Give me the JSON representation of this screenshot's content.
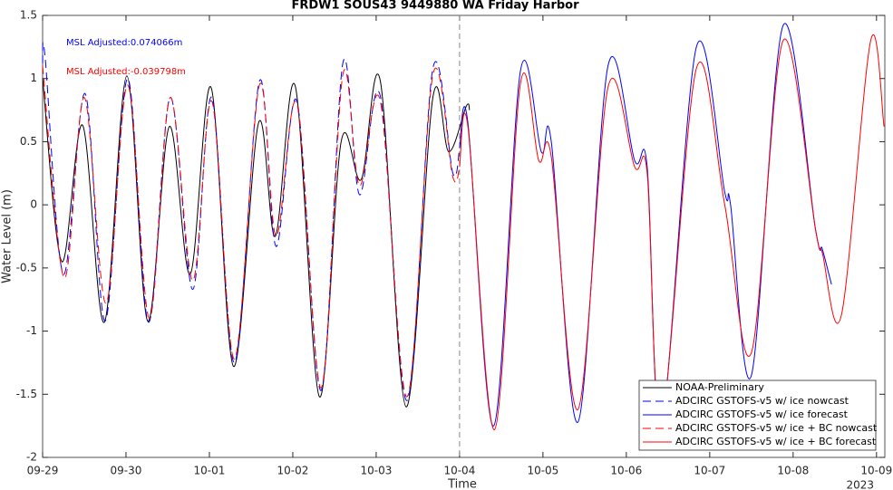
{
  "chart_data": {
    "type": "line",
    "title": "FRDW1 SOUS43 9449880 WA Friday Harbor",
    "x_label": "Time",
    "y_label": "Water Level (m)",
    "xlim": [
      0,
      10.1
    ],
    "ylim": [
      -2,
      1.5
    ],
    "xticks": [
      {
        "value": 0,
        "label": "09-29"
      },
      {
        "value": 1,
        "label": "09-30"
      },
      {
        "value": 2,
        "label": "10-01"
      },
      {
        "value": 3,
        "label": "10-02"
      },
      {
        "value": 4,
        "label": "10-03"
      },
      {
        "value": 5,
        "label": "10-04"
      },
      {
        "value": 6,
        "label": "10-05"
      },
      {
        "value": 7,
        "label": "10-06"
      },
      {
        "value": 8,
        "label": "10-07"
      },
      {
        "value": 9,
        "label": "10-08"
      },
      {
        "value": 10,
        "label": "10-09"
      }
    ],
    "x_year": "2023",
    "yticks": [
      -2,
      -1.5,
      -1,
      -0.5,
      0,
      0.5,
      1,
      1.5
    ],
    "divider_x": 5,
    "annotations": [
      {
        "text": "MSL Adjusted:0.074066m",
        "color": "#0000ff"
      },
      {
        "text": "MSL Adjusted:-0.039798m",
        "color": "#ff0000"
      }
    ],
    "legend": "lower right",
    "series": [
      {
        "name": "NOAA-Preliminary",
        "color": "#000000",
        "dash": false,
        "x": [
          0,
          0.23,
          0.48,
          0.74,
          1.01,
          1.26,
          1.52,
          1.77,
          2.02,
          2.29,
          2.59,
          2.79,
          3.03,
          3.32,
          3.58,
          3.82,
          4.05,
          4.36,
          4.68,
          4.87,
          5.08,
          5.12
        ],
        "values": [
          1.0,
          -0.45,
          0.63,
          -0.93,
          1.02,
          -0.92,
          0.62,
          -0.55,
          0.93,
          -1.28,
          0.65,
          -0.25,
          0.94,
          -1.52,
          0.5,
          0.2,
          0.98,
          -1.6,
          0.85,
          0.42,
          0.78,
          0.75
        ]
      },
      {
        "name": "ADCIRC GSTOFS-v5 w/ ice nowcast",
        "color": "#0000ff",
        "dash": true,
        "x": [
          0,
          0.03,
          0.25,
          0.51,
          0.75,
          1.02,
          1.27,
          1.53,
          1.8,
          2.03,
          2.3,
          2.6,
          2.8,
          3.05,
          3.34,
          3.6,
          3.8,
          4.05,
          4.37,
          4.68,
          4.92,
          5.0
        ],
        "values": [
          1.12,
          1.17,
          -0.55,
          0.88,
          -0.92,
          1.0,
          -0.93,
          0.85,
          -0.67,
          0.85,
          -1.25,
          0.98,
          -0.33,
          0.82,
          -1.47,
          1.12,
          0.08,
          0.86,
          -1.55,
          1.08,
          0.25,
          0.45
        ]
      },
      {
        "name": "ADCIRC GSTOFS-v5 w/ ice forecast",
        "color": "#0000ff",
        "dash": false,
        "x": [
          5.0,
          5.1,
          5.41,
          5.73,
          5.98,
          6.1,
          6.42,
          6.78,
          7.1,
          7.25,
          7.42,
          7.84,
          8.18,
          8.25,
          8.5,
          8.88,
          9.27,
          9.35,
          9.46
        ],
        "values": [
          0.45,
          0.65,
          -1.75,
          1.06,
          0.42,
          0.5,
          -1.72,
          1.1,
          0.35,
          0.3,
          -1.75,
          1.25,
          0.1,
          0.0,
          -1.35,
          1.42,
          -0.2,
          -0.35,
          -0.63
        ]
      },
      {
        "name": "ADCIRC GSTOFS-v5 w/ ice + BC nowcast",
        "color": "#ff0000",
        "dash": true,
        "x": [
          0,
          0.26,
          0.5,
          0.76,
          1.02,
          1.28,
          1.53,
          1.8,
          2.03,
          2.3,
          2.6,
          2.8,
          3.05,
          3.34,
          3.6,
          3.8,
          4.05,
          4.37,
          4.68,
          4.92,
          5.0
        ],
        "values": [
          1.1,
          -0.58,
          0.85,
          -0.78,
          0.95,
          -0.9,
          0.85,
          -0.6,
          0.82,
          -1.22,
          0.95,
          -0.25,
          0.8,
          -1.45,
          1.03,
          0.15,
          0.82,
          -1.52,
          1.03,
          0.22,
          0.3
        ]
      },
      {
        "name": "ADCIRC GSTOFS-v5 w/ ice + BC forecast",
        "color": "#ff0000",
        "dash": false,
        "x": [
          5.0,
          5.1,
          5.42,
          5.73,
          5.95,
          6.1,
          6.42,
          6.78,
          7.1,
          7.25,
          7.42,
          7.84,
          8.18,
          8.5,
          8.88,
          9.27,
          9.35,
          9.58,
          9.93,
          10.09
        ],
        "values": [
          0.3,
          0.62,
          -1.78,
          0.96,
          0.35,
          0.38,
          -1.62,
          0.93,
          0.3,
          0.25,
          -1.72,
          1.08,
          0.0,
          -1.17,
          1.3,
          -0.2,
          -0.38,
          -0.87,
          1.3,
          0.62
        ]
      }
    ]
  }
}
